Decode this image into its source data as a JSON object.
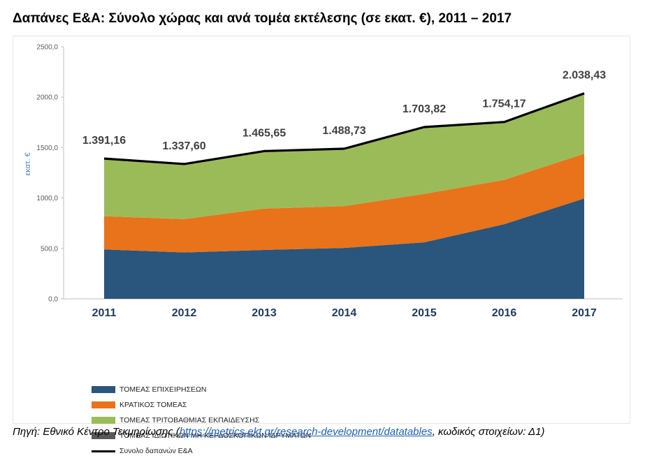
{
  "title": "Δαπάνες Ε&Α: Σύνολο χώρας και ανά τομέα εκτέλεσης (σε εκατ. €), 2011 – 2017",
  "source": {
    "prefix": "Πηγή: Εθνικό Κέντρο Τεκμηρίωσης (",
    "link_text": "https://metrics.ekt.gr/research-development/datatables",
    "suffix": ", κωδικός στοιχείων: Δ1)"
  },
  "chart_data": {
    "type": "area",
    "stacked": true,
    "x": [
      "2011",
      "2012",
      "2013",
      "2014",
      "2015",
      "2016",
      "2017"
    ],
    "ylabel": "εκατ. €",
    "ylim": [
      0,
      2500
    ],
    "yticks": [
      "0,0",
      "500,0",
      "1000,0",
      "1500,0",
      "2000,0",
      "2500,0"
    ],
    "grid": false,
    "legend_position": "bottom-left",
    "series": [
      {
        "name": "ΤΟΜΕΑΣ ΕΠΙΧΕΙΡΗΣΕΩΝ",
        "color": "#2a557c",
        "values": [
          490,
          460,
          485,
          505,
          560,
          740,
          995
        ]
      },
      {
        "name": "ΚΡΑΤΙΚΟΣ ΤΟΜΕΑΣ",
        "color": "#e8731a",
        "values": [
          330,
          330,
          410,
          415,
          480,
          440,
          445
        ]
      },
      {
        "name": "ΤΟΜΕΑΣ ΤΡΙΤΟΒΑΘΜΙΑΣ ΕΚΠΑΙΔΕΥΣΗΣ",
        "color": "#9bbb59",
        "values": [
          566,
          543,
          566,
          564,
          659,
          569,
          594
        ]
      },
      {
        "name": "ΤΟΜΕΑΣ ΙΔΙΩΤΙΚΩΝ ΜΗ ΚΕΡΔΟΣΚΟΠΙΚΩΝ ΙΔΡΥΜΑΤΩΝ",
        "color": "#595959",
        "values": [
          5,
          5,
          5,
          5,
          5,
          5,
          5
        ]
      }
    ],
    "total": {
      "name": "Συνολο δαπανών Ε&Α",
      "color": "#000000",
      "values": [
        1391.16,
        1337.6,
        1465.65,
        1488.73,
        1703.82,
        1754.17,
        2038.43
      ],
      "labels": [
        "1.391,16",
        "1.337,60",
        "1.465,65",
        "1.488,73",
        "1.703,82",
        "1.754,17",
        "2.038,43"
      ]
    }
  }
}
